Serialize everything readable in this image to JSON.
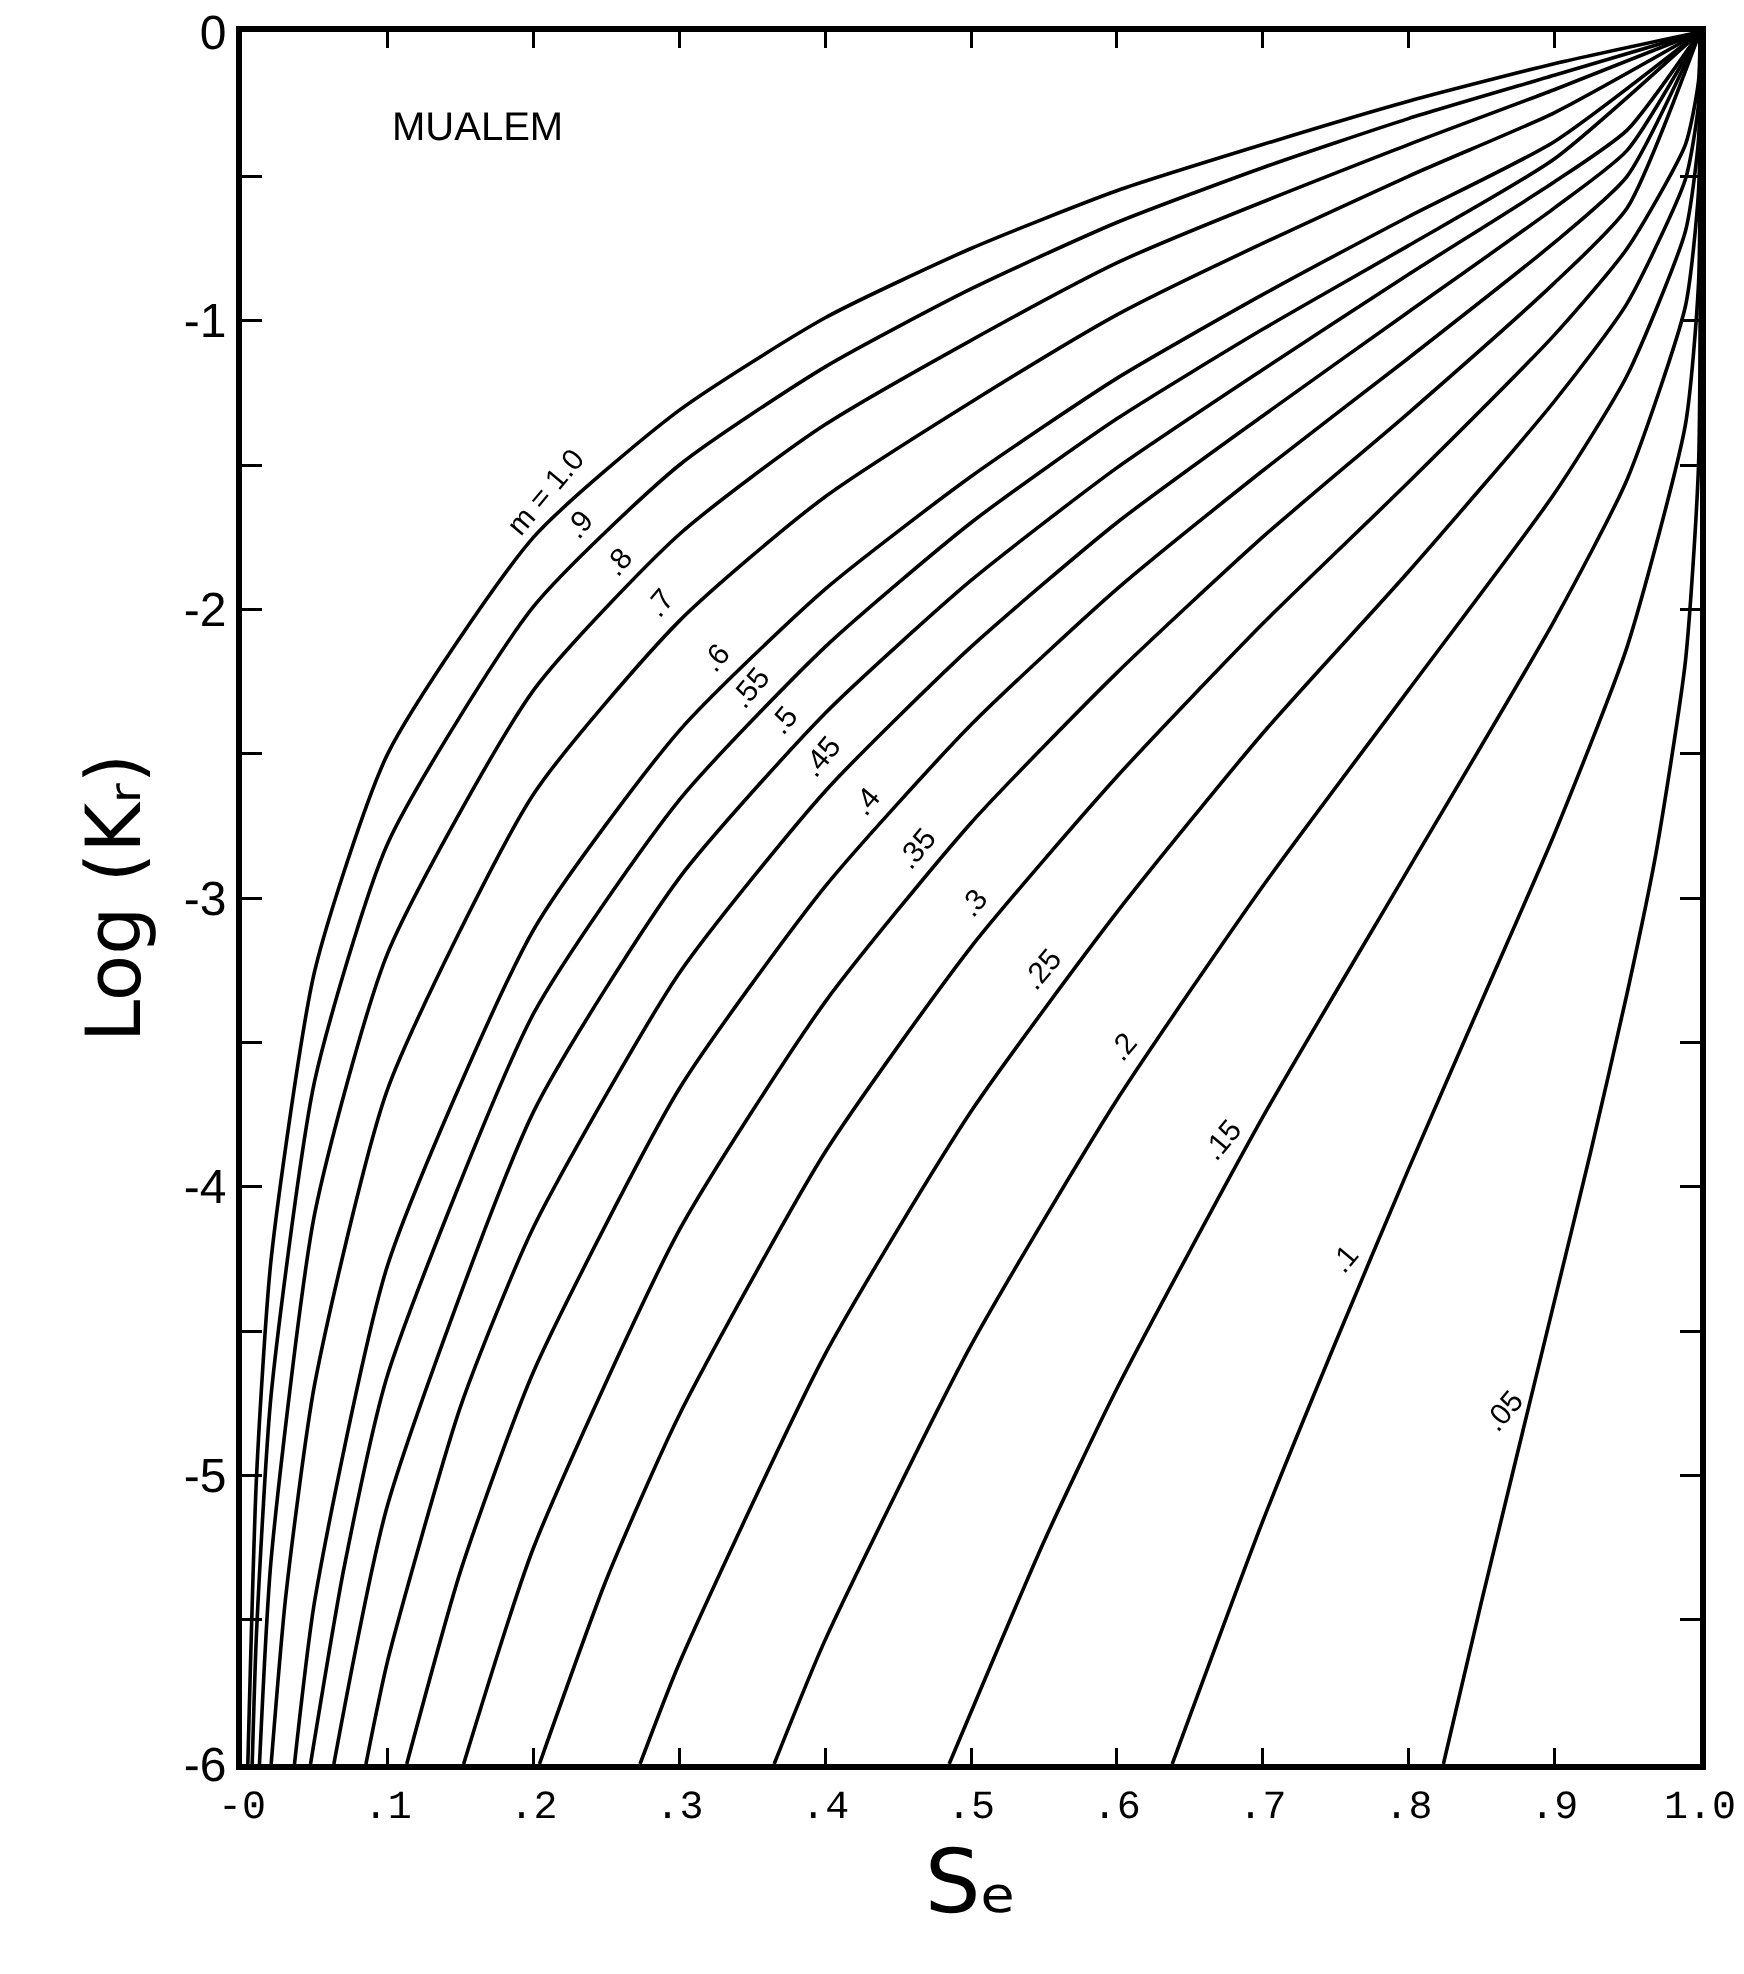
{
  "chart_data": {
    "type": "line",
    "xlabel": "Sₑ",
    "ylabel": "Log (Kᵣ)",
    "annotations": [
      "MUALEM"
    ],
    "xlim": [
      0,
      1
    ],
    "ylim": [
      -6,
      0
    ],
    "xticks": [
      {
        "value": 0,
        "label": "-0"
      },
      {
        "value": 0.1,
        "label": ".1"
      },
      {
        "value": 0.2,
        "label": ".2"
      },
      {
        "value": 0.3,
        "label": ".3"
      },
      {
        "value": 0.4,
        "label": ".4"
      },
      {
        "value": 0.5,
        "label": ".5"
      },
      {
        "value": 0.6,
        "label": ".6"
      },
      {
        "value": 0.7,
        "label": ".7"
      },
      {
        "value": 0.8,
        "label": ".8"
      },
      {
        "value": 0.9,
        "label": ".9"
      },
      {
        "value": 1,
        "label": "1.0"
      }
    ],
    "yticks": [
      0,
      {
        "value": -0.5,
        "label": null
      },
      -1,
      {
        "value": -1.5,
        "label": null
      },
      -2,
      {
        "value": -2.5,
        "label": null
      },
      -3,
      {
        "value": -3.5,
        "label": null
      },
      -4,
      {
        "value": -4.5,
        "label": null
      },
      -5,
      {
        "value": -5.5,
        "label": null
      },
      -6
    ],
    "grid": false,
    "legend": false,
    "marker": "none",
    "line_style": "solid",
    "series": [
      {
        "name": "m = 1.0",
        "color": "#000000",
        "x": [
          0.004,
          0.01,
          0.02,
          0.05,
          0.1,
          0.2,
          0.3,
          0.4,
          0.5,
          0.6,
          0.7,
          0.8,
          0.9,
          1
        ],
        "values": [
          -6,
          -5,
          -4.25,
          -3.25,
          -2.5,
          -1.75,
          -1.31,
          -0.99,
          -0.75,
          -0.55,
          -0.39,
          -0.24,
          -0.11,
          0
        ]
      },
      {
        "name": ".9",
        "color": "#000000",
        "x": [
          0.007,
          0.01,
          0.02,
          0.05,
          0.1,
          0.2,
          0.3,
          0.4,
          0.5,
          0.6,
          0.7,
          0.8,
          0.9,
          1
        ],
        "values": [
          -6,
          -5.54,
          -4.72,
          -3.63,
          -2.81,
          -1.99,
          -1.5,
          -1.16,
          -0.89,
          -0.66,
          -0.47,
          -0.3,
          -0.15,
          0
        ]
      },
      {
        "name": ".8",
        "color": "#000000",
        "x": [
          0.012,
          0.02,
          0.05,
          0.1,
          0.2,
          0.3,
          0.4,
          0.6,
          0.8,
          0.9,
          1
        ],
        "values": [
          -6,
          -5.29,
          -4.09,
          -3.19,
          -2.28,
          -1.74,
          -1.36,
          -0.8,
          -0.39,
          -0.2,
          0
        ]
      },
      {
        "name": ".7",
        "color": "#000000",
        "x": [
          0.02,
          0.03,
          0.05,
          0.1,
          0.2,
          0.3,
          0.4,
          0.6,
          0.8,
          0.9,
          1
        ],
        "values": [
          -6,
          -5.42,
          -4.68,
          -3.66,
          -2.64,
          -2.04,
          -1.61,
          -0.98,
          -0.5,
          -0.28,
          0
        ]
      },
      {
        "name": ".6",
        "color": "#000000",
        "x": [
          0.036,
          0.05,
          0.1,
          0.2,
          0.3,
          0.4,
          0.5,
          0.6,
          0.7,
          0.8,
          0.9,
          1
        ],
        "values": [
          -6,
          -5.43,
          -4.27,
          -3.11,
          -2.42,
          -1.93,
          -1.54,
          -1.2,
          -0.91,
          -0.64,
          -0.38,
          0
        ]
      },
      {
        "name": ".55",
        "color": "#000000",
        "x": [
          0.047,
          0.07,
          0.1,
          0.2,
          0.3,
          0.4,
          0.5,
          0.6,
          0.7,
          0.8,
          0.9,
          1
        ],
        "values": [
          -6,
          -5.32,
          -4.65,
          -3.4,
          -2.66,
          -2.13,
          -1.7,
          -1.34,
          -1.03,
          -0.74,
          -0.44,
          0
        ]
      },
      {
        "name": ".5",
        "color": "#000000",
        "x": [
          0.063,
          0.1,
          0.2,
          0.3,
          0.4,
          0.5,
          0.6,
          0.7,
          0.8,
          0.9,
          0.95,
          1
        ],
        "values": [
          -6,
          -5.1,
          -3.74,
          -2.93,
          -2.36,
          -1.9,
          -1.51,
          -1.17,
          -0.84,
          -0.52,
          -0.34,
          0
        ]
      },
      {
        "name": ".45",
        "color": "#000000",
        "x": [
          0.085,
          0.1,
          0.15,
          0.2,
          0.3,
          0.4,
          0.5,
          0.6,
          0.7,
          0.8,
          0.9,
          0.95,
          1
        ],
        "values": [
          -6,
          -5.64,
          -4.76,
          -4.14,
          -3.26,
          -2.63,
          -2.13,
          -1.7,
          -1.33,
          -0.97,
          -0.61,
          -0.41,
          0
        ]
      },
      {
        "name": ".4",
        "color": "#000000",
        "x": [
          0.113,
          0.15,
          0.2,
          0.3,
          0.4,
          0.5,
          0.6,
          0.7,
          0.8,
          0.9,
          0.95,
          1
        ],
        "values": [
          -6,
          -5.33,
          -4.64,
          -3.66,
          -2.96,
          -2.4,
          -1.93,
          -1.52,
          -1.13,
          -0.73,
          -0.5,
          0
        ]
      },
      {
        "name": ".35",
        "color": "#000000",
        "x": [
          0.152,
          0.2,
          0.3,
          0.4,
          0.5,
          0.6,
          0.7,
          0.8,
          0.9,
          0.95,
          1
        ],
        "values": [
          -6,
          -5.25,
          -4.15,
          -3.36,
          -2.74,
          -2.22,
          -1.75,
          -1.32,
          -0.87,
          -0.61,
          0
        ]
      },
      {
        "name": ".3",
        "color": "#000000",
        "x": [
          0.204,
          0.25,
          0.3,
          0.4,
          0.5,
          0.6,
          0.7,
          0.8,
          0.9,
          0.95,
          0.99,
          0.999,
          1
        ],
        "values": [
          -6,
          -5.36,
          -4.79,
          -3.88,
          -3.17,
          -2.58,
          -2.05,
          -1.56,
          -1.05,
          -0.75,
          -0.39,
          -0.17,
          0
        ]
      },
      {
        "name": ".25",
        "color": "#000000",
        "x": [
          0.273,
          0.3,
          0.4,
          0.5,
          0.6,
          0.7,
          0.8,
          0.9,
          0.95,
          0.99,
          0.999,
          1
        ],
        "values": [
          -6,
          -5.65,
          -4.58,
          -3.74,
          -3.05,
          -2.43,
          -1.87,
          -1.28,
          -0.94,
          -0.51,
          -0.25,
          0
        ]
      },
      {
        "name": ".2",
        "color": "#000000",
        "x": [
          0.365,
          0.4,
          0.5,
          0.6,
          0.7,
          0.8,
          0.9,
          0.95,
          0.99,
          0.999,
          1
        ],
        "values": [
          -6,
          -5.57,
          -4.55,
          -3.7,
          -2.96,
          -2.28,
          -1.6,
          -1.19,
          -0.69,
          -0.37,
          0
        ]
      },
      {
        "name": ".15",
        "color": "#000000",
        "x": [
          0.485,
          0.55,
          0.6,
          0.7,
          0.8,
          0.9,
          0.95,
          0.99,
          0.999,
          1
        ],
        "values": [
          -6,
          -5.23,
          -4.7,
          -3.76,
          -2.9,
          -2.04,
          -1.55,
          -0.95,
          -0.55,
          0
        ]
      },
      {
        "name": ".1",
        "color": "#000000",
        "x": [
          0.638,
          0.7,
          0.75,
          0.8,
          0.85,
          0.9,
          0.95,
          0.99,
          0.999,
          1
        ],
        "values": [
          -6,
          -5.16,
          -4.54,
          -3.94,
          -3.36,
          -2.78,
          -2.13,
          -1.36,
          -0.87,
          0
        ]
      },
      {
        "name": ".05",
        "color": "#000000",
        "x": [
          0.824,
          0.85,
          0.9,
          0.925,
          0.95,
          0.97,
          0.99,
          0.999,
          1
        ],
        "values": [
          -6,
          -5.44,
          -4.4,
          -3.88,
          -3.33,
          -2.84,
          -2.18,
          -1.5,
          0
        ]
      }
    ]
  }
}
